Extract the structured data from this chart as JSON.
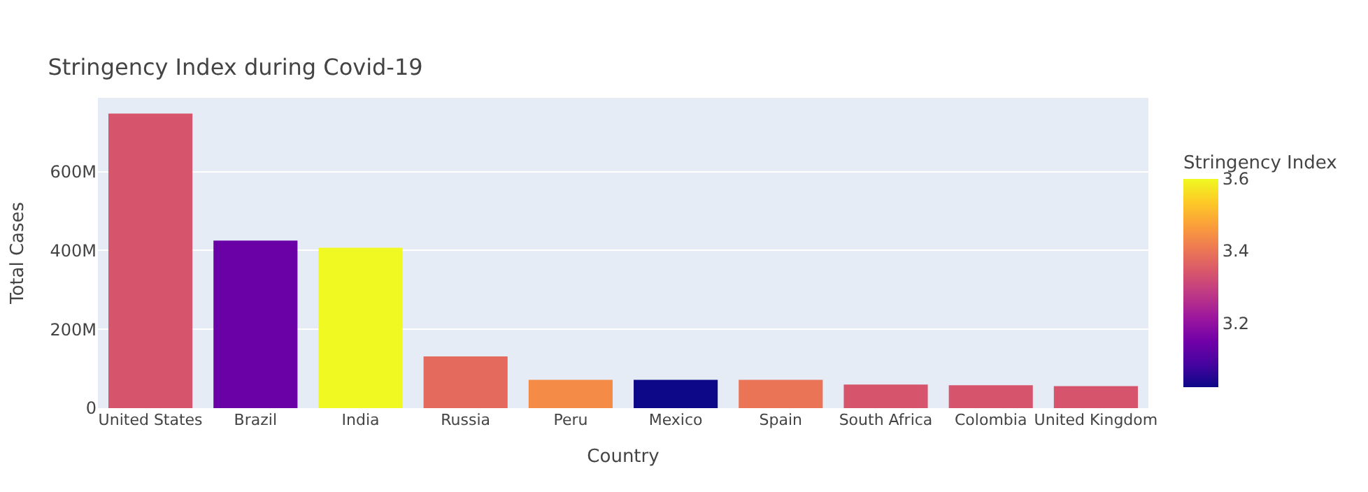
{
  "chart_data": {
    "type": "bar",
    "title": "Stringency Index during Covid-19",
    "xlabel": "Country",
    "ylabel": "Total Cases",
    "clabel": "Stringency Index",
    "categories": [
      "United States",
      "Brazil",
      "India",
      "Russia",
      "Peru",
      "Mexico",
      "Spain",
      "South Africa",
      "Colombia",
      "United Kingdom"
    ],
    "values": [
      747000000,
      425000000,
      407000000,
      131000000,
      72000000,
      72000000,
      72000000,
      60000000,
      58000000,
      56000000
    ],
    "cvalues": [
      3.34,
      3.14,
      3.6,
      3.38,
      3.44,
      3.025,
      3.4,
      3.34,
      3.34,
      3.34
    ],
    "clim": [
      3.025,
      3.6
    ],
    "cticks": [
      3.2,
      3.4,
      3.6
    ],
    "ylim": [
      0,
      787000000
    ],
    "yticks": [
      {
        "value": 0,
        "label": "0"
      },
      {
        "value": 200000000,
        "label": "200M"
      },
      {
        "value": 400000000,
        "label": "400M"
      },
      {
        "value": 600000000,
        "label": "600M"
      }
    ],
    "grid": "y"
  }
}
